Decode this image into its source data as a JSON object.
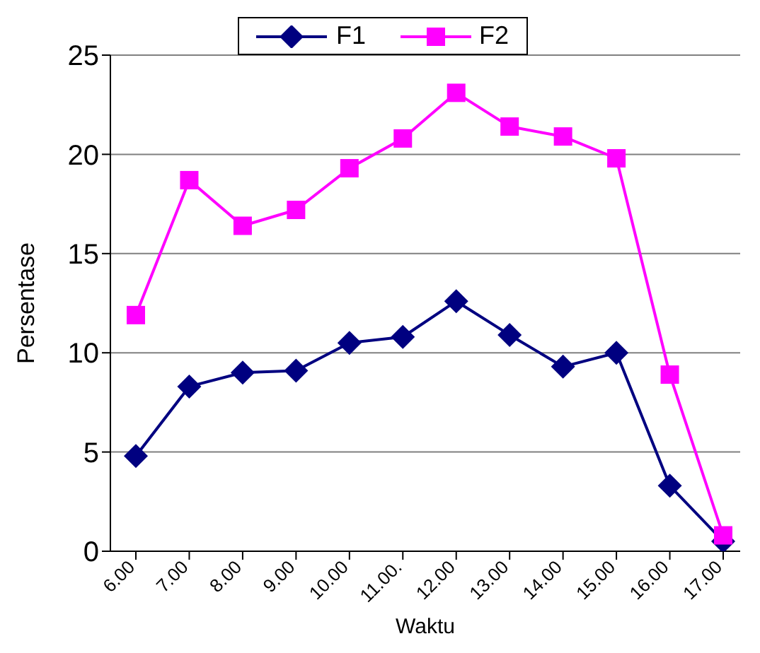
{
  "chart_data": {
    "type": "line",
    "xlabel": "Waktu",
    "ylabel": "Persentase",
    "categories": [
      "6.00",
      "7.00",
      "8.00",
      "9.00",
      "10.00",
      "11.00.",
      "12.00",
      "13.00",
      "14.00",
      "15.00",
      "16.00",
      "17.00"
    ],
    "series": [
      {
        "name": "F1",
        "color": "#000080",
        "marker": "diamond",
        "values": [
          4.8,
          8.3,
          9.0,
          9.1,
          10.5,
          10.8,
          12.6,
          10.9,
          9.3,
          10.0,
          3.3,
          0.5
        ]
      },
      {
        "name": "F2",
        "color": "#ff00ff",
        "marker": "square",
        "values": [
          11.9,
          18.7,
          16.4,
          17.2,
          19.3,
          20.8,
          23.1,
          21.4,
          20.9,
          19.8,
          8.9,
          0.8
        ]
      }
    ],
    "ylim": [
      0,
      25
    ],
    "yticks": [
      0,
      5,
      10,
      15,
      20,
      25
    ],
    "grid": "y",
    "legend": "top",
    "line_style": "solid"
  }
}
